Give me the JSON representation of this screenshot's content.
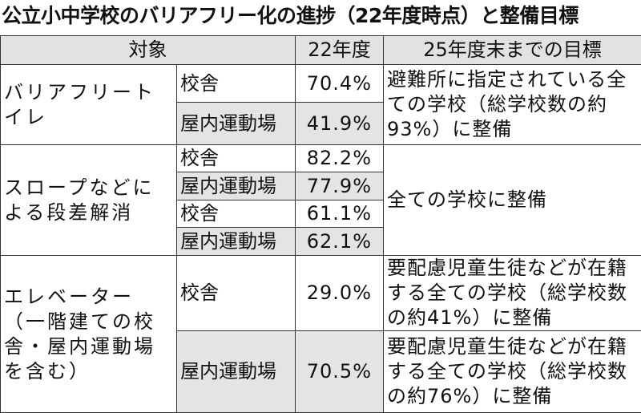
{
  "header": {
    "title": "公立小中学校のバリアフリー化の進捗（22年度時点）と整備目標"
  },
  "table": {
    "columns": [
      "対象",
      "22年度",
      "25年度末までの目標"
    ],
    "groups": [
      {
        "category": "バリアフリートイレ",
        "rows": [
          {
            "facility": "校舎",
            "rate": "70.4%"
          },
          {
            "facility": "屋内運動場",
            "rate": "41.9%"
          }
        ],
        "goal": "避難所に指定されている全ての学校（総学校数の約93%）に整備"
      },
      {
        "category": "スロープなどによる段差解消",
        "rows": [
          {
            "facility": "校舎",
            "rate": "82.2%"
          },
          {
            "facility": "屋内運動場",
            "rate": "77.9%"
          },
          {
            "facility": "校舎",
            "rate": "61.1%"
          },
          {
            "facility": "屋内運動場",
            "rate": "62.1%"
          }
        ],
        "goal": "全ての学校に整備"
      },
      {
        "category": "エレベーター（一階建ての校舎・屋内運動場を含む）",
        "rows": [
          {
            "facility": "校舎",
            "rate": "29.0%",
            "goal": "要配慮児童生徒などが在籍する全ての学校（総学校数の約41%）に整備"
          },
          {
            "facility": "屋内運動場",
            "rate": "70.5%",
            "goal": "要配慮児童生徒などが在籍する全ての学校（総学校数の約76%）に整備"
          }
        ]
      }
    ]
  }
}
